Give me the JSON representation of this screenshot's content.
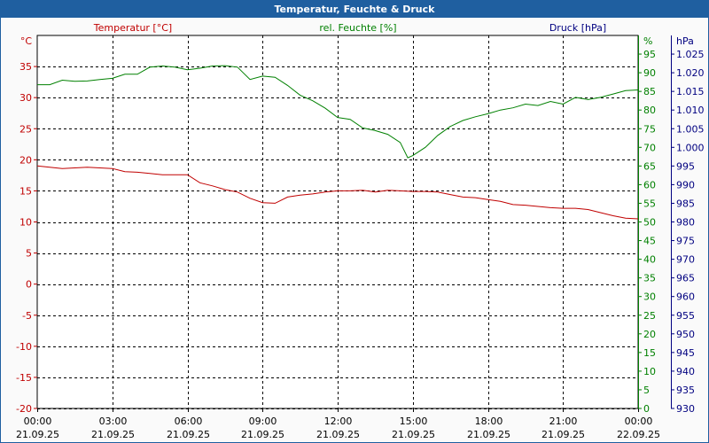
{
  "window": {
    "title": "Temperatur, Feuchte & Druck"
  },
  "chart_data": {
    "type": "line",
    "title": "Temperatur, Feuchte & Druck",
    "grid": true,
    "x": [
      "00:00",
      "03:00",
      "06:00",
      "09:00",
      "12:00",
      "15:00",
      "18:00",
      "21:00",
      "00:00"
    ],
    "x_dates": [
      "21.09.25",
      "21.09.25",
      "21.09.25",
      "21.09.25",
      "21.09.25",
      "21.09.25",
      "21.09.25",
      "21.09.25",
      "22.09.25"
    ],
    "xlim_hours": [
      0,
      24
    ],
    "axes": {
      "temperature": {
        "label": "Temperatur [°C]",
        "unit": "°C",
        "range": [
          -20,
          40
        ],
        "ticks": [
          -20,
          -15,
          -10,
          -5,
          0,
          5,
          10,
          15,
          20,
          25,
          30,
          35
        ],
        "color": "#c00000"
      },
      "humidity": {
        "label": "rel. Feuchte [%]",
        "unit": "%",
        "range": [
          0,
          100
        ],
        "ticks": [
          0,
          5,
          10,
          15,
          20,
          25,
          30,
          35,
          40,
          45,
          50,
          55,
          60,
          65,
          70,
          75,
          80,
          85,
          90,
          95
        ],
        "color": "#008000"
      },
      "pressure": {
        "label": "Druck [hPa]",
        "unit": "hPa",
        "range": [
          930,
          1030
        ],
        "ticks": [
          "930",
          "935",
          "940",
          "945",
          "950",
          "955",
          "960",
          "965",
          "970",
          "975",
          "980",
          "985",
          "990",
          "995",
          "1.000",
          "1.005",
          "1.010",
          "1.015",
          "1.020",
          "1.025"
        ],
        "color": "#000080"
      }
    },
    "series": [
      {
        "name": "Temperatur [°C]",
        "axis": "temperature",
        "color": "#c00000",
        "points": [
          [
            0,
            19
          ],
          [
            0.5,
            18.8
          ],
          [
            1,
            18.6
          ],
          [
            1.5,
            18.7
          ],
          [
            2,
            18.8
          ],
          [
            3,
            18.6
          ],
          [
            3.5,
            18.1
          ],
          [
            4,
            18
          ],
          [
            4.5,
            17.8
          ],
          [
            5,
            17.6
          ],
          [
            6,
            17.6
          ],
          [
            6.5,
            16.3
          ],
          [
            7,
            15.8
          ],
          [
            7.5,
            15.2
          ],
          [
            8,
            14.8
          ],
          [
            8.5,
            13.8
          ],
          [
            9,
            13.1
          ],
          [
            9.5,
            13
          ],
          [
            10,
            14
          ],
          [
            10.5,
            14.3
          ],
          [
            11,
            14.5
          ],
          [
            11.5,
            14.8
          ],
          [
            12,
            15
          ],
          [
            12.5,
            15
          ],
          [
            13,
            15.1
          ],
          [
            13.5,
            14.8
          ],
          [
            14,
            15.1
          ],
          [
            14.5,
            15
          ],
          [
            15,
            14.9
          ],
          [
            15.5,
            14.9
          ],
          [
            16,
            14.8
          ],
          [
            16.5,
            14.4
          ],
          [
            17,
            14
          ],
          [
            17.5,
            13.9
          ],
          [
            18,
            13.6
          ],
          [
            18.5,
            13.3
          ],
          [
            19,
            12.8
          ],
          [
            19.5,
            12.7
          ],
          [
            20,
            12.5
          ],
          [
            20.5,
            12.3
          ],
          [
            21,
            12.2
          ],
          [
            21.5,
            12.2
          ],
          [
            22,
            12
          ],
          [
            22.5,
            11.5
          ],
          [
            23,
            11
          ],
          [
            23.5,
            10.6
          ],
          [
            24,
            10.5
          ]
        ]
      },
      {
        "name": "rel. Feuchte [%]",
        "axis": "humidity",
        "color": "#008000",
        "points": [
          [
            0,
            86.8
          ],
          [
            0.5,
            86.8
          ],
          [
            1,
            88
          ],
          [
            1.5,
            87.7
          ],
          [
            2,
            87.8
          ],
          [
            2.5,
            88.2
          ],
          [
            3,
            88.5
          ],
          [
            3.5,
            89.6
          ],
          [
            4,
            89.6
          ],
          [
            4.5,
            91.5
          ],
          [
            5,
            91.8
          ],
          [
            5.5,
            91.5
          ],
          [
            6,
            90.8
          ],
          [
            6.5,
            91.2
          ],
          [
            7,
            91.8
          ],
          [
            7.5,
            91.9
          ],
          [
            8,
            91.5
          ],
          [
            8.5,
            88.2
          ],
          [
            9,
            89.1
          ],
          [
            9.5,
            88.8
          ],
          [
            10,
            86.6
          ],
          [
            10.5,
            84
          ],
          [
            11,
            82.5
          ],
          [
            11.5,
            80.5
          ],
          [
            12,
            78
          ],
          [
            12.5,
            77.5
          ],
          [
            13,
            75.2
          ],
          [
            13.5,
            74.5
          ],
          [
            14,
            73.5
          ],
          [
            14.5,
            71.3
          ],
          [
            14.8,
            67.2
          ],
          [
            15,
            67.8
          ],
          [
            15.5,
            70
          ],
          [
            16,
            73.2
          ],
          [
            16.5,
            75.6
          ],
          [
            17,
            77.2
          ],
          [
            17.5,
            78.2
          ],
          [
            18,
            79
          ],
          [
            18.5,
            80
          ],
          [
            19,
            80.6
          ],
          [
            19.5,
            81.6
          ],
          [
            20,
            81.2
          ],
          [
            20.5,
            82.3
          ],
          [
            21,
            81.6
          ],
          [
            21.5,
            83.4
          ],
          [
            22,
            82.8
          ],
          [
            22.5,
            83.4
          ],
          [
            23,
            84.3
          ],
          [
            23.5,
            85.2
          ],
          [
            24,
            85.4
          ]
        ]
      }
    ]
  }
}
